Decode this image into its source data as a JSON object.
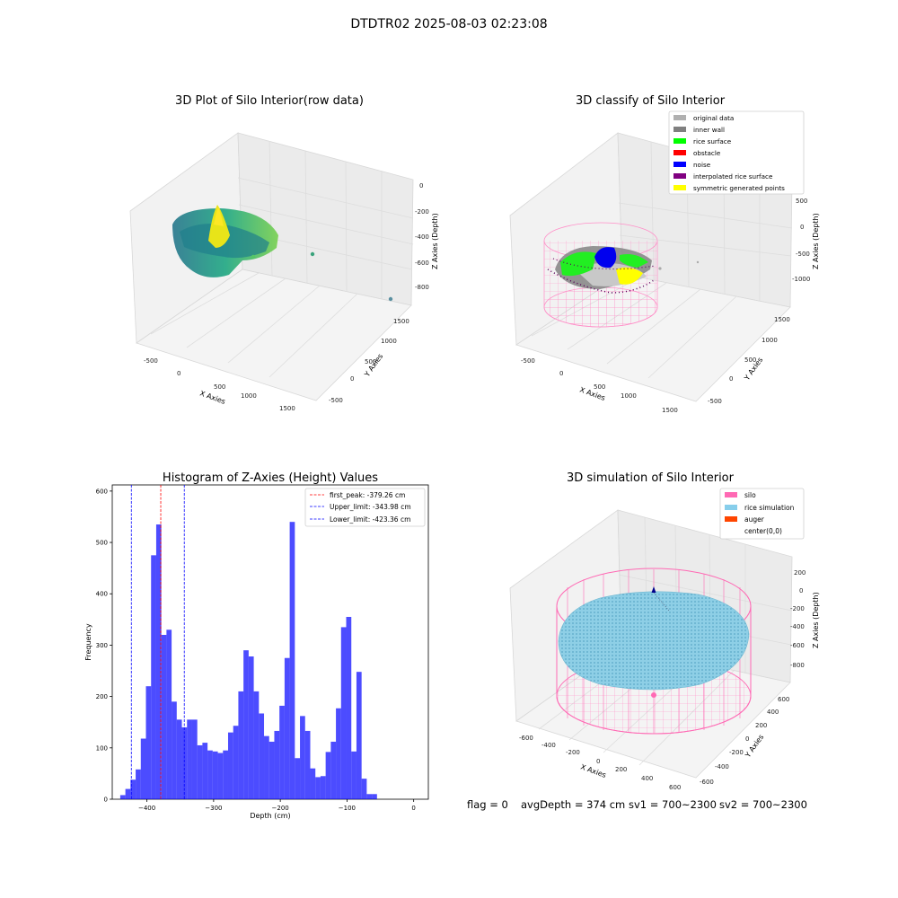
{
  "suptitle": "DTDTR02 2025-08-03 02:23:08",
  "footer": {
    "flag": "flag = 0",
    "avg": "avgDepth = 374 cm",
    "sv1": "sv1 = 700~2300",
    "sv2": "sv2 = 700~2300"
  },
  "chart_data": [
    {
      "type": "scatter",
      "title": "3D Plot of Silo Interior(row data)",
      "xlabel": "X Axies",
      "ylabel": "Y Axies",
      "zlabel": "Z Axies (Depth)",
      "xticks": [
        "-500",
        "0",
        "500",
        "1000",
        "1500"
      ],
      "yticks": [
        "-500",
        "0",
        "500",
        "1000",
        "1500"
      ],
      "zticks": [
        "0",
        "-200",
        "-400",
        "-600",
        "-800"
      ],
      "colormap": [
        "#31688e",
        "#21918c",
        "#35b779",
        "#90d743",
        "#fde725"
      ]
    },
    {
      "type": "scatter",
      "title": "3D classify of Silo Interior",
      "xlabel": "X Axies",
      "ylabel": "Y Axies",
      "zlabel": "Z Axies (Depth)",
      "xticks": [
        "-500",
        "0",
        "500",
        "1000",
        "1500"
      ],
      "yticks": [
        "-500",
        "0",
        "500",
        "1000",
        "1500"
      ],
      "zticks": [
        "500",
        "0",
        "-500",
        "-1000"
      ],
      "legend_position": "top-right",
      "legend": [
        {
          "label": "original data",
          "color": "#b0b0b0"
        },
        {
          "label": "inner wall",
          "color": "#808080"
        },
        {
          "label": "rice surface",
          "color": "#00ff00"
        },
        {
          "label": "obstacle",
          "color": "#ff0000"
        },
        {
          "label": "noise",
          "color": "#0000ff"
        },
        {
          "label": "interpolated rice surface",
          "color": "#800080"
        },
        {
          "label": "symmetric generated points",
          "color": "#ffff00"
        }
      ]
    },
    {
      "type": "bar",
      "title": "Histogram of Z-Axies (Height) Values",
      "xlabel": "Depth (cm)",
      "ylabel": "Frequency",
      "xlim": [
        -452,
        22
      ],
      "ylim": [
        0,
        612
      ],
      "xticks": [
        -400,
        -300,
        -200,
        -100,
        0
      ],
      "yticks": [
        0,
        100,
        200,
        300,
        400,
        500,
        600
      ],
      "bar_color": "#0000ff",
      "bin_start": -440,
      "bin_width": 7.7,
      "values": [
        8,
        20,
        38,
        58,
        118,
        220,
        475,
        535,
        320,
        330,
        190,
        155,
        140,
        155,
        155,
        105,
        110,
        95,
        93,
        90,
        95,
        130,
        143,
        210,
        290,
        278,
        210,
        167,
        123,
        112,
        133,
        182,
        275,
        540,
        80,
        162,
        133,
        60,
        43,
        45,
        92,
        112,
        177,
        335,
        355,
        93,
        248,
        40,
        10,
        10
      ],
      "lines": [
        {
          "label": "first_peak: -379.26 cm",
          "x": -379.26,
          "color": "#ff0000"
        },
        {
          "label": "Upper_limit: -343.98 cm",
          "x": -343.98,
          "color": "#0000ff"
        },
        {
          "label": "Lower_limit: -423.36 cm",
          "x": -423.36,
          "color": "#0000ff"
        }
      ],
      "legend_position": "top-right"
    },
    {
      "type": "scatter",
      "title": "3D simulation of Silo Interior",
      "xlabel": "X Axies",
      "ylabel": "Y Axies",
      "zlabel": "Z Axies (Depth)",
      "xticks": [
        "-600",
        "-400",
        "-200",
        "0",
        "200",
        "400",
        "600"
      ],
      "yticks": [
        "-600",
        "-400",
        "-200",
        "0",
        "200",
        "400",
        "600"
      ],
      "zticks": [
        "200",
        "0",
        "-200",
        "-400",
        "-600",
        "-800"
      ],
      "legend_position": "top-right",
      "legend": [
        {
          "label": "silo",
          "color": "#ff69b4"
        },
        {
          "label": "rice simulation",
          "color": "#87ceeb"
        },
        {
          "label": "auger",
          "color": "#ff4500"
        },
        {
          "label": "center(0,0)",
          "color": "#00008b"
        }
      ]
    }
  ]
}
